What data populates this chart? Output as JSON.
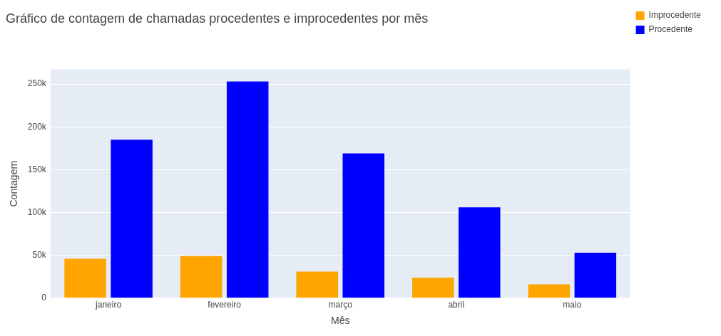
{
  "chart_data": {
    "type": "bar",
    "title": "Gráfico de contagem de chamadas procedentes e improcedentes por mês",
    "xlabel": "Mês",
    "ylabel": "Contagem",
    "categories": [
      "janeiro",
      "fevereiro",
      "março",
      "abril",
      "maio"
    ],
    "series": [
      {
        "name": "Improcedente",
        "color": "#ffa500",
        "values": [
          46000,
          49000,
          31000,
          24000,
          16000
        ]
      },
      {
        "name": "Procedente",
        "color": "#0000ff",
        "values": [
          185000,
          253000,
          169000,
          106000,
          53000
        ]
      }
    ],
    "ylim": [
      0,
      267000
    ],
    "yticks": [
      0,
      {
        "value": 50000,
        "label": "50k"
      },
      {
        "value": 100000,
        "label": "100k"
      },
      {
        "value": 150000,
        "label": "150k"
      },
      {
        "value": 200000,
        "label": "200k"
      },
      {
        "value": 250000,
        "label": "250k"
      }
    ],
    "grid": "y",
    "legend": "top right"
  }
}
